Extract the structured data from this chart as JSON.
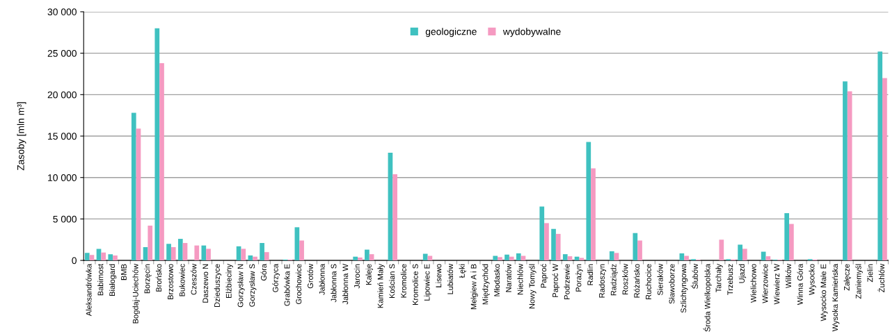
{
  "chart_data": {
    "type": "bar",
    "ylabel": "Zasoby [mln m³]",
    "categories": [
      "Aleksandrówka",
      "Babimost",
      "Białogard",
      "BMB",
      "Bogdaj-Uciechów",
      "Borzęcin",
      "Brońsko",
      "Brzostowo",
      "Bukowiec",
      "Czeszów",
      "Daszewo N",
      "Dzieduszyce",
      "Elżbieciny",
      "Gorzysław N",
      "Gorzysław S",
      "Góra",
      "Górzyca",
      "Grabówka E",
      "Grochowice",
      "Grotów",
      "Jabłonna",
      "Jabłonna S",
      "Jabłonna W",
      "Jarocin",
      "Kaleje",
      "Kamień Mały",
      "Kościan S",
      "Kromolice",
      "Kromolice S",
      "Lipowiec E",
      "Lisewo",
      "Lubiatów",
      "Łęki",
      "Mełgiew A i B",
      "Międzychód",
      "Młodasko",
      "Naratów",
      "Niechlów",
      "Nowy Tomyśl",
      "Paproć",
      "Paproć W",
      "Podrzewie",
      "Porażyn",
      "Radlin",
      "Radoszyn",
      "Radziądz",
      "Roszków",
      "Różańsko",
      "Ruchocice",
      "Sieraków",
      "Sławoborze",
      "Szlichtyngowa",
      "Ślubów",
      "Środa Wielkopolska",
      "Tarchały",
      "Trzebusz",
      "Ujazd",
      "Wielichowo",
      "Wierzowice",
      "Wiewierz W",
      "Wilków",
      "Winna Góra",
      "Wysocko",
      "Wysocko Małe E",
      "Wysoka Kamieńska",
      "Załęcze",
      "Zaniemyśl",
      "Zielin",
      "Żuchlów"
    ],
    "series": [
      {
        "name": "geologiczne",
        "color": "#3fc1c0",
        "values": [
          900,
          1400,
          750,
          0,
          17800,
          1600,
          28000,
          2000,
          2600,
          0,
          1800,
          0,
          0,
          1700,
          600,
          2100,
          0,
          100,
          4000,
          0,
          0,
          0,
          0,
          450,
          1300,
          0,
          13000,
          0,
          0,
          800,
          0,
          0,
          0,
          0,
          0,
          550,
          700,
          850,
          0,
          6500,
          3800,
          750,
          450,
          14300,
          0,
          1100,
          0,
          3300,
          0,
          0,
          0,
          850,
          150,
          0,
          0,
          150,
          1900,
          0,
          1050,
          80,
          5700,
          0,
          150,
          0,
          0,
          21600,
          0,
          0,
          25200
        ]
      },
      {
        "name": "wydobywalne",
        "color": "#f59ac1",
        "values": [
          650,
          950,
          600,
          0,
          15900,
          4200,
          23800,
          1600,
          2100,
          1800,
          1400,
          0,
          0,
          1400,
          450,
          1000,
          0,
          100,
          2400,
          0,
          0,
          0,
          0,
          350,
          750,
          0,
          10400,
          0,
          0,
          550,
          0,
          0,
          0,
          0,
          0,
          400,
          450,
          550,
          0,
          4500,
          3200,
          500,
          300,
          11100,
          0,
          900,
          0,
          2400,
          0,
          0,
          0,
          550,
          80,
          0,
          2500,
          120,
          1400,
          0,
          500,
          80,
          4400,
          0,
          100,
          0,
          0,
          20400,
          0,
          0,
          22000
        ]
      }
    ],
    "ylim": [
      0,
      30000
    ],
    "yticks": [
      0,
      {
        "value": 5000,
        "label": "5 000"
      },
      {
        "value": 10000,
        "label": "10 000"
      },
      {
        "value": 15000,
        "label": "15 000"
      },
      {
        "value": 20000,
        "label": "20 000"
      },
      {
        "value": 25000,
        "label": "25 000"
      },
      {
        "value": 30000,
        "label": "30 000"
      }
    ],
    "grid": "y",
    "legend": "top"
  }
}
